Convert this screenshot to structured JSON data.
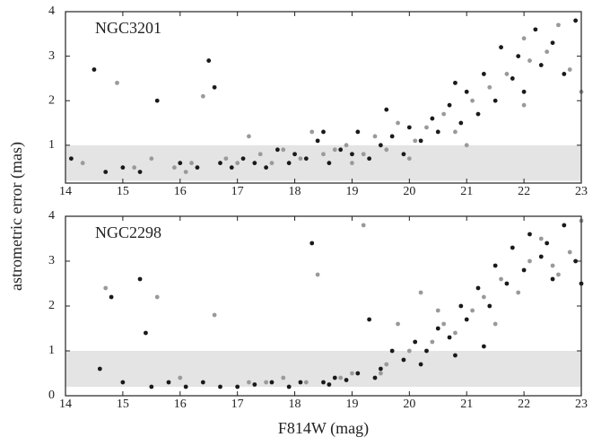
{
  "chart_data": [
    {
      "type": "scatter",
      "annotation": "NGC3201",
      "ylabel": "astrometric error (mas)",
      "xlim": [
        14,
        23
      ],
      "xticks": [
        14,
        15,
        16,
        17,
        18,
        19,
        20,
        21,
        22,
        23
      ],
      "ylim": [
        0.15,
        4
      ],
      "yticks": [
        1,
        2,
        3,
        4
      ],
      "shaded_band": [
        0.2,
        1
      ],
      "band_color": "#e4e4e4",
      "series": [
        {
          "color": "#1a1a1a",
          "x": [
            14.1,
            14.5,
            14.7,
            15.0,
            15.3,
            15.6,
            16.0,
            16.3,
            16.5,
            16.7,
            16.9,
            17.1,
            17.3,
            17.5,
            17.7,
            17.9,
            18.0,
            18.2,
            18.4,
            18.6,
            18.8,
            19.0,
            19.1,
            19.3,
            19.5,
            19.7,
            19.9,
            20.0,
            20.2,
            20.4,
            20.5,
            20.7,
            20.9,
            21.0,
            21.2,
            21.3,
            21.5,
            21.6,
            21.8,
            21.9,
            22.0,
            22.2,
            22.3,
            22.5,
            22.7,
            22.9,
            16.6,
            18.5,
            19.6,
            20.8
          ],
          "values": [
            0.7,
            2.7,
            0.4,
            0.5,
            0.4,
            2.0,
            0.6,
            0.5,
            2.9,
            0.6,
            0.5,
            0.7,
            0.6,
            0.5,
            0.9,
            0.6,
            0.8,
            0.7,
            1.1,
            0.6,
            0.9,
            0.8,
            1.3,
            0.7,
            1.0,
            1.2,
            0.8,
            1.4,
            1.1,
            1.6,
            1.3,
            1.9,
            1.5,
            2.2,
            1.7,
            2.6,
            2.0,
            3.2,
            2.5,
            3.0,
            2.2,
            3.6,
            2.8,
            3.3,
            2.6,
            3.8,
            2.3,
            1.3,
            1.8,
            2.4
          ]
        },
        {
          "color": "#9a9a9a",
          "x": [
            14.3,
            14.9,
            15.2,
            15.5,
            15.9,
            16.2,
            16.4,
            16.8,
            17.0,
            17.2,
            17.4,
            17.6,
            17.8,
            18.1,
            18.3,
            18.5,
            18.7,
            18.9,
            19.2,
            19.4,
            19.6,
            19.8,
            20.1,
            20.3,
            20.6,
            20.8,
            21.1,
            21.4,
            21.7,
            22.0,
            22.1,
            22.4,
            22.6,
            22.8,
            23.0,
            19.0,
            20.0,
            21.0,
            22.0,
            16.1
          ],
          "values": [
            0.6,
            2.4,
            0.5,
            0.7,
            0.5,
            0.6,
            2.1,
            0.7,
            0.6,
            1.2,
            0.8,
            0.6,
            0.9,
            0.7,
            1.3,
            0.8,
            0.9,
            1.0,
            0.8,
            1.2,
            0.9,
            1.5,
            1.1,
            1.4,
            1.7,
            1.3,
            2.0,
            2.3,
            2.6,
            3.4,
            2.9,
            3.1,
            3.7,
            2.7,
            2.2,
            0.6,
            0.7,
            1.0,
            1.9,
            0.4
          ]
        }
      ]
    },
    {
      "type": "scatter",
      "annotation": "NGC2298",
      "xlabel": "F814W (mag)",
      "xlim": [
        14,
        23
      ],
      "xticks": [
        14,
        15,
        16,
        17,
        18,
        19,
        20,
        21,
        22,
        23
      ],
      "ylim": [
        0,
        4
      ],
      "yticks": [
        0,
        1,
        2,
        3,
        4
      ],
      "shaded_band": [
        0.2,
        1
      ],
      "band_color": "#e4e4e4",
      "series": [
        {
          "color": "#1a1a1a",
          "x": [
            14.6,
            14.8,
            15.0,
            15.3,
            15.5,
            15.8,
            16.1,
            16.4,
            16.7,
            17.0,
            17.3,
            17.6,
            17.9,
            18.1,
            18.3,
            18.5,
            18.7,
            18.9,
            19.1,
            19.3,
            19.5,
            19.7,
            19.9,
            20.1,
            20.3,
            20.5,
            20.7,
            20.9,
            21.0,
            21.2,
            21.4,
            21.5,
            21.7,
            21.8,
            22.0,
            22.1,
            22.3,
            22.5,
            22.7,
            22.9,
            23.0,
            18.6,
            19.4,
            20.2,
            20.8,
            21.3,
            22.4,
            15.4
          ],
          "values": [
            0.6,
            2.2,
            0.3,
            2.6,
            0.2,
            0.3,
            0.2,
            0.3,
            0.2,
            0.2,
            0.25,
            0.3,
            0.2,
            0.3,
            3.4,
            0.3,
            0.4,
            0.35,
            0.5,
            1.7,
            0.6,
            1.0,
            0.8,
            1.2,
            1.0,
            1.5,
            1.3,
            2.0,
            1.7,
            2.4,
            2.0,
            2.9,
            2.5,
            3.3,
            2.8,
            3.6,
            3.1,
            2.6,
            3.8,
            3.0,
            2.5,
            0.25,
            0.4,
            0.7,
            0.9,
            1.1,
            3.4,
            1.4
          ]
        },
        {
          "color": "#9a9a9a",
          "x": [
            14.7,
            15.6,
            16.0,
            16.6,
            17.2,
            17.8,
            18.2,
            18.4,
            18.8,
            19.0,
            19.2,
            19.6,
            19.8,
            20.0,
            20.2,
            20.4,
            20.6,
            20.8,
            21.1,
            21.3,
            21.6,
            21.9,
            22.1,
            22.3,
            22.6,
            22.8,
            23.0,
            19.5,
            20.5,
            21.5,
            22.5,
            17.5
          ],
          "values": [
            2.4,
            2.2,
            0.4,
            1.8,
            0.3,
            0.4,
            0.3,
            2.7,
            0.4,
            0.5,
            3.8,
            0.7,
            1.6,
            1.0,
            2.3,
            1.2,
            1.6,
            1.4,
            1.9,
            2.2,
            2.6,
            2.3,
            3.0,
            3.5,
            2.7,
            3.2,
            3.9,
            0.5,
            1.9,
            1.6,
            2.9,
            0.3
          ]
        }
      ]
    }
  ]
}
